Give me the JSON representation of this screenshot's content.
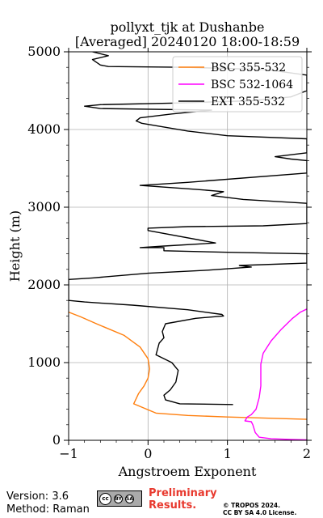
{
  "chart_data": {
    "type": "line",
    "title": "pollyxt_tjk at Dushanbe",
    "subtitle": "[Averaged] 20240120 18:00-18:59",
    "xlabel": "Angstroem Exponent",
    "ylabel": "Height (m)",
    "xlim": [
      -1,
      2
    ],
    "ylim": [
      0,
      5000
    ],
    "xticks": [
      "−1",
      "0",
      "1",
      "2"
    ],
    "yticks": [
      "0",
      "1000",
      "2000",
      "3000",
      "4000",
      "5000"
    ],
    "grid": true,
    "legend_position": "top-right",
    "series": [
      {
        "name": "BSC 355-532",
        "color": "#ff7f0e",
        "points": [
          [
            2.0,
            270
          ],
          [
            1.0,
            300
          ],
          [
            0.5,
            320
          ],
          [
            0.1,
            350
          ],
          [
            -0.18,
            470
          ],
          [
            -0.12,
            600
          ],
          [
            -0.05,
            700
          ],
          [
            0.0,
            800
          ],
          [
            0.02,
            920
          ],
          [
            0.0,
            1050
          ],
          [
            -0.1,
            1200
          ],
          [
            -0.3,
            1350
          ],
          [
            -0.65,
            1500
          ],
          [
            -0.85,
            1590
          ],
          [
            -1.0,
            1650
          ]
        ]
      },
      {
        "name": "BSC 532-1064",
        "color": "#ff00ff",
        "points": [
          [
            2.0,
            5
          ],
          [
            1.8,
            10
          ],
          [
            1.55,
            20
          ],
          [
            1.4,
            40
          ],
          [
            1.35,
            100
          ],
          [
            1.32,
            200
          ],
          [
            1.3,
            240
          ],
          [
            1.22,
            250
          ],
          [
            1.25,
            300
          ],
          [
            1.3,
            330
          ],
          [
            1.36,
            400
          ],
          [
            1.4,
            550
          ],
          [
            1.42,
            700
          ],
          [
            1.42,
            850
          ],
          [
            1.42,
            980
          ],
          [
            1.45,
            1120
          ],
          [
            1.55,
            1280
          ],
          [
            1.68,
            1430
          ],
          [
            1.82,
            1570
          ],
          [
            1.92,
            1650
          ],
          [
            2.0,
            1690
          ]
        ]
      },
      {
        "name": "EXT 355-532",
        "color": "#000000",
        "points": [
          [
            1.07,
            460
          ],
          [
            0.4,
            470
          ],
          [
            0.22,
            520
          ],
          [
            0.2,
            580
          ],
          [
            0.28,
            650
          ],
          [
            0.35,
            750
          ],
          [
            0.38,
            900
          ],
          [
            0.3,
            1000
          ],
          [
            0.1,
            1100
          ],
          [
            0.14,
            1250
          ],
          [
            0.2,
            1320
          ],
          [
            0.18,
            1400
          ],
          [
            0.22,
            1500
          ],
          [
            0.6,
            1570
          ],
          [
            0.95,
            1600
          ],
          [
            0.93,
            1620
          ],
          [
            0.5,
            1680
          ],
          [
            -0.2,
            1740
          ],
          [
            -0.8,
            1780
          ],
          [
            -1.0,
            1800
          ],
          [
            -1.0,
            2070
          ],
          [
            -0.7,
            2090
          ],
          [
            0.0,
            2150
          ],
          [
            0.75,
            2190
          ],
          [
            1.3,
            2230
          ],
          [
            1.15,
            2250
          ],
          [
            2.0,
            2280
          ],
          [
            2.0,
            2400
          ],
          [
            1.0,
            2420
          ],
          [
            0.2,
            2440
          ],
          [
            0.2,
            2480
          ],
          [
            -0.1,
            2480
          ],
          [
            0.2,
            2500
          ],
          [
            0.85,
            2540
          ],
          [
            0.0,
            2700
          ],
          [
            0.0,
            2730
          ],
          [
            0.5,
            2750
          ],
          [
            1.45,
            2760
          ],
          [
            2.0,
            2790
          ],
          [
            2.0,
            3050
          ],
          [
            1.2,
            3100
          ],
          [
            0.8,
            3150
          ],
          [
            0.95,
            3200
          ],
          [
            0.6,
            3230
          ],
          [
            -0.1,
            3280
          ],
          [
            0.5,
            3320
          ],
          [
            2.0,
            3440
          ],
          [
            2.0,
            3600
          ],
          [
            1.8,
            3620
          ],
          [
            1.6,
            3650
          ],
          [
            2.0,
            3700
          ],
          [
            2.0,
            3880
          ],
          [
            1.0,
            3920
          ],
          [
            0.5,
            3980
          ],
          [
            -0.08,
            4080
          ],
          [
            -0.15,
            4110
          ],
          [
            -0.1,
            4150
          ],
          [
            0.3,
            4200
          ],
          [
            0.8,
            4250
          ],
          [
            -0.6,
            4270
          ],
          [
            -0.8,
            4300
          ],
          [
            -0.6,
            4320
          ],
          [
            0.3,
            4340
          ],
          [
            1.3,
            4370
          ],
          [
            1.8,
            4420
          ],
          [
            2.0,
            4500
          ],
          [
            2.0,
            4700
          ],
          [
            1.5,
            4770
          ],
          [
            0.5,
            4800
          ],
          [
            -0.5,
            4810
          ],
          [
            -0.6,
            4830
          ],
          [
            -0.7,
            4900
          ],
          [
            -0.5,
            4950
          ],
          [
            -0.7,
            5000
          ]
        ]
      }
    ]
  },
  "footer": {
    "version": "Version: 3.6",
    "method": "Method: Raman",
    "preliminary_line1": "Preliminary",
    "preliminary_line2": "Results.",
    "copyright_line1": "© TROPOS 2024.",
    "copyright_line2": "CC BY SA 4.0 License."
  },
  "license_badge": {
    "cc": "cc",
    "by": "BY",
    "sa": "SA"
  }
}
